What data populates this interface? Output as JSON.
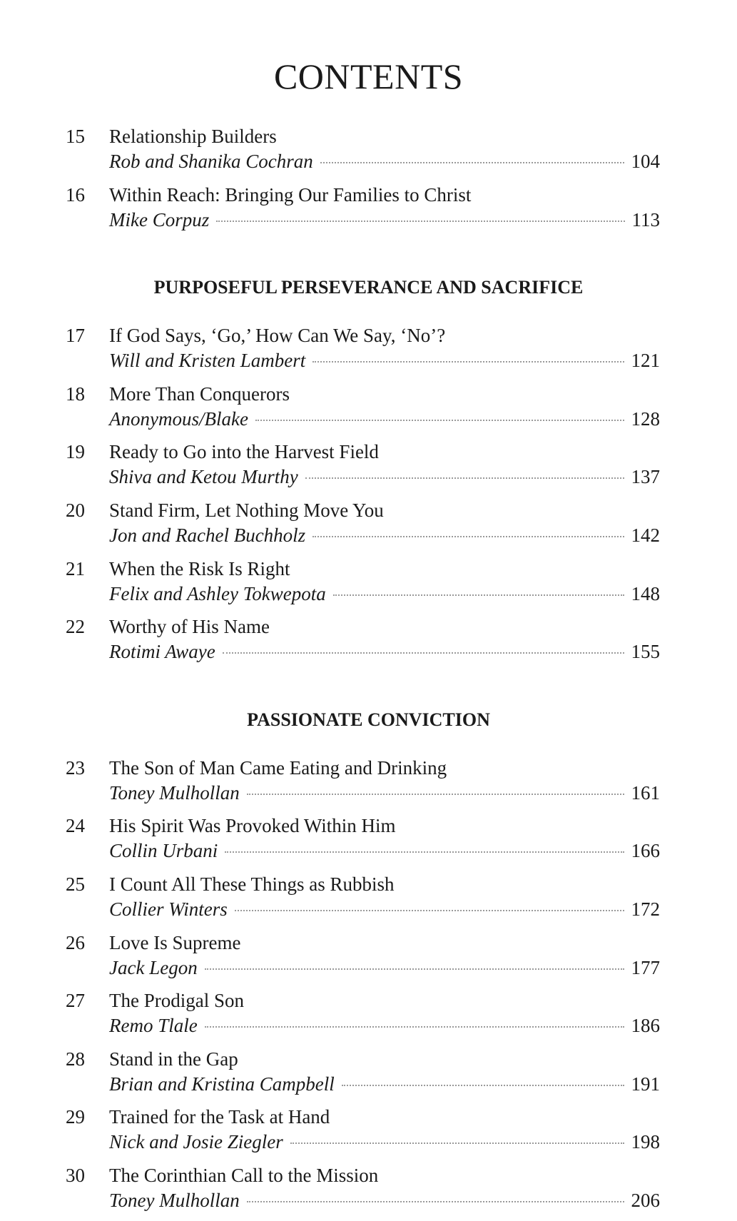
{
  "title": "CONTENTS",
  "items": [
    {
      "type": "entry",
      "number": "15",
      "title": "Relationship Builders",
      "author": "Rob and Shanika Cochran",
      "page": "104"
    },
    {
      "type": "entry",
      "number": "16",
      "title": "Within Reach: Bringing Our Families to Christ",
      "author": "Mike Corpuz",
      "page": "113"
    },
    {
      "type": "section",
      "heading": "PURPOSEFUL PERSEVERANCE AND SACRIFICE"
    },
    {
      "type": "entry",
      "number": "17",
      "title": "If God Says, ‘Go,’ How Can We Say, ‘No’?",
      "author": "Will and Kristen Lambert",
      "page": "121"
    },
    {
      "type": "entry",
      "number": "18",
      "title": "More Than Conquerors",
      "author": "Anonymous/Blake",
      "page": "128"
    },
    {
      "type": "entry",
      "number": "19",
      "title": "Ready to Go into the Harvest Field",
      "author": "Shiva and Ketou Murthy",
      "page": "137"
    },
    {
      "type": "entry",
      "number": "20",
      "title": "Stand Firm, Let Nothing Move You",
      "author": "Jon and Rachel Buchholz",
      "page": "142"
    },
    {
      "type": "entry",
      "number": "21",
      "title": "When the Risk Is Right",
      "author": "Felix and Ashley Tokwepota",
      "page": "148"
    },
    {
      "type": "entry",
      "number": "22",
      "title": "Worthy of His Name",
      "author": "Rotimi Awaye",
      "page": "155"
    },
    {
      "type": "section",
      "heading": "PASSIONATE CONVICTION"
    },
    {
      "type": "entry",
      "number": "23",
      "title": "The Son of Man Came Eating and Drinking",
      "author": "Toney Mulhollan",
      "page": "161"
    },
    {
      "type": "entry",
      "number": "24",
      "title": "His Spirit Was Provoked Within Him",
      "author": "Collin Urbani",
      "page": "166"
    },
    {
      "type": "entry",
      "number": "25",
      "title": "I Count All These Things as Rubbish",
      "author": "Collier Winters",
      "page": "172"
    },
    {
      "type": "entry",
      "number": "26",
      "title": "Love Is Supreme",
      "author": "Jack Legon",
      "page": "177"
    },
    {
      "type": "entry",
      "number": "27",
      "title": "The Prodigal Son",
      "author": "Remo Tlale",
      "page": "186"
    },
    {
      "type": "entry",
      "number": "28",
      "title": "Stand in the Gap",
      "author": "Brian and Kristina Campbell",
      "page": "191"
    },
    {
      "type": "entry",
      "number": "29",
      "title": "Trained for the Task at Hand",
      "author": "Nick and Josie Ziegler",
      "page": "198"
    },
    {
      "type": "entry",
      "number": "30",
      "title": "The Corinthian Call to the Mission",
      "author": "Toney Mulhollan",
      "page": "206"
    }
  ]
}
